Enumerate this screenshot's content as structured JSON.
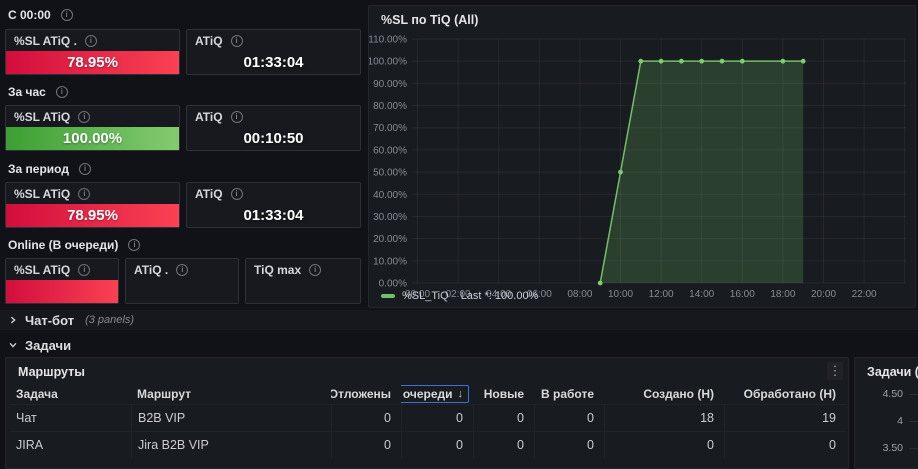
{
  "colors": {
    "red_start": "#d20e3d",
    "red_end": "#fb4153",
    "green_start": "#3c9f33",
    "green_end": "#84cb70",
    "series_green": "#73bf69",
    "marker_green": "#7ecb72",
    "sort_highlight_blue": "#3d71d9",
    "grid": "rgba(204,204,220,0.08)",
    "axis_text": "#878d96"
  },
  "icons": {
    "info": "i",
    "kebab": "⋮",
    "sort_desc": "↓"
  },
  "stat_sections": [
    {
      "label": "С 00:00",
      "panels": [
        {
          "title": "%SL ATiQ .",
          "value": "78.95%",
          "value_bg": "red"
        },
        {
          "title": "ATiQ",
          "value": "01:33:04",
          "value_bg": "none"
        }
      ]
    },
    {
      "label": "За час",
      "panels": [
        {
          "title": "%SL ATiQ",
          "value": "100.00%",
          "value_bg": "green"
        },
        {
          "title": "ATiQ",
          "value": "00:10:50",
          "value_bg": "none"
        }
      ]
    },
    {
      "label": "За период",
      "panels": [
        {
          "title": "%SL ATiQ",
          "value": "78.95%",
          "value_bg": "red"
        },
        {
          "title": "ATiQ",
          "value": "01:33:04",
          "value_bg": "none"
        }
      ]
    },
    {
      "label": "Online (В очереди)",
      "panels": [
        {
          "title": "%SL ATiQ",
          "value": "",
          "value_bg": "red"
        },
        {
          "title": "ATiQ .",
          "value": "",
          "value_bg": "none"
        },
        {
          "title": "TiQ max",
          "value": "",
          "value_bg": "none"
        }
      ]
    }
  ],
  "chart_data": {
    "type": "area",
    "title": "%SL по TiQ (All)",
    "xlabel": "",
    "ylabel": "",
    "x_ticks": [
      "00:00",
      "02:00",
      "04:00",
      "06:00",
      "08:00",
      "10:00",
      "12:00",
      "14:00",
      "16:00",
      "18:00",
      "20:00",
      "22:00"
    ],
    "y_ticks": [
      "110.00%",
      "100.00%",
      "90.00%",
      "80.00%",
      "70.00%",
      "60.00%",
      "50.00%",
      "40.00%",
      "30.00%",
      "20.00%",
      "10.00%",
      "0.00%"
    ],
    "ylim": [
      0,
      110
    ],
    "xlim_hours": [
      0,
      24.3
    ],
    "grid": true,
    "legend_position": "bottom",
    "series": [
      {
        "name": "%SL_TiQ",
        "color": "#73bf69",
        "fill_opacity": 0.22,
        "points_hours_pct": [
          [
            9,
            0
          ],
          [
            10,
            50
          ],
          [
            11,
            100
          ],
          [
            12,
            100
          ],
          [
            13,
            100
          ],
          [
            14,
            100
          ],
          [
            15,
            100
          ],
          [
            16,
            100
          ],
          [
            18,
            100
          ],
          [
            19,
            100
          ]
        ],
        "last_value": "100.00%"
      }
    ],
    "legend": {
      "series_label": "%SL_TiQ",
      "stat_text": "Last *: 100.00%"
    }
  },
  "rows": {
    "chatbot": {
      "label": "Чат-бот",
      "panel_count": "(3 panels)",
      "collapsed": true
    },
    "tasks": {
      "label": "Задачи",
      "collapsed": false
    }
  },
  "routes_table": {
    "title": "Маршруты",
    "columns": [
      {
        "label": "Задача",
        "align": "left"
      },
      {
        "label": "Маршрут",
        "align": "left"
      },
      {
        "label": "Отложены",
        "align": "right"
      },
      {
        "label": "В очереди",
        "align": "right",
        "sorted": "desc"
      },
      {
        "label": "Новые",
        "align": "right"
      },
      {
        "label": "В работе",
        "align": "right"
      },
      {
        "label": "Создано (Н)",
        "align": "right"
      },
      {
        "label": "Обработано (Н)",
        "align": "right"
      }
    ],
    "rows": [
      {
        "cells": [
          "Чат",
          "B2B VIP",
          "0",
          "0",
          "0",
          "0",
          "18",
          "19"
        ]
      },
      {
        "cells": [
          "JIRA",
          "Jira B2B VIP",
          "0",
          "0",
          "0",
          "0",
          "0",
          "0"
        ]
      }
    ]
  },
  "tasks_overview": {
    "title": "Задачи (All)",
    "y_ticks": [
      "4.50",
      "4",
      "3.50"
    ]
  }
}
